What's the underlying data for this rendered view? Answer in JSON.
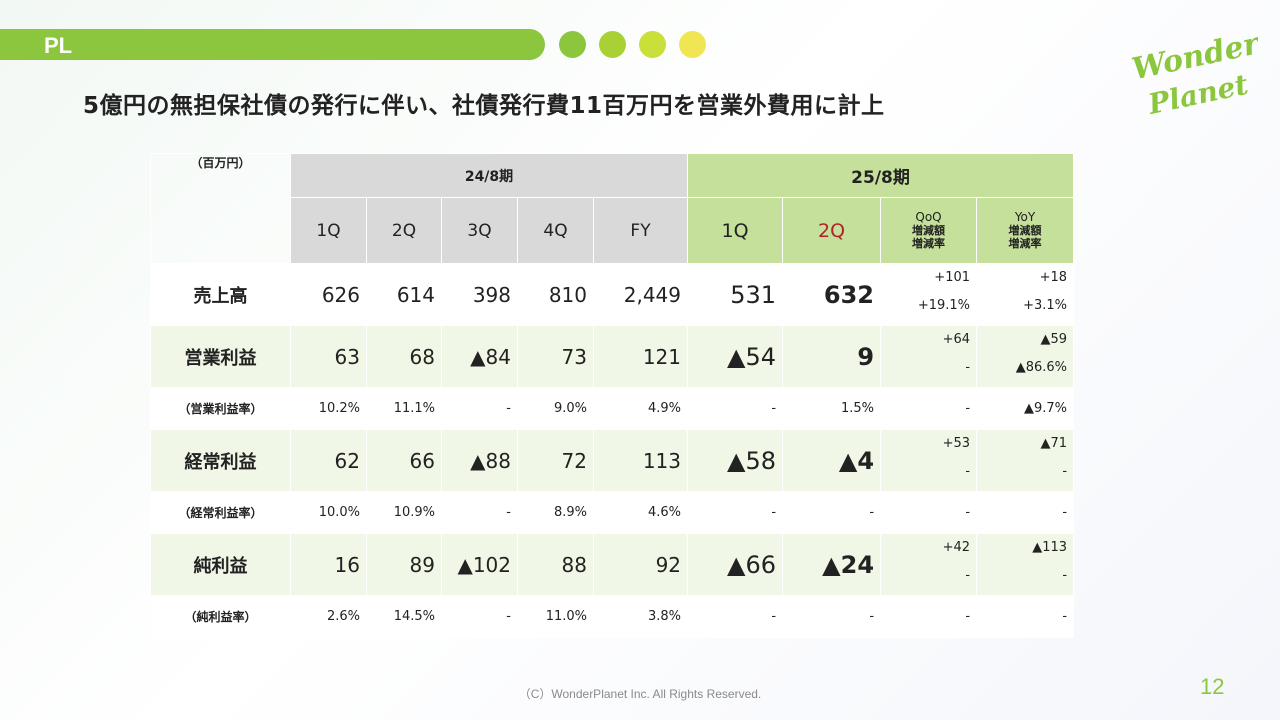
{
  "section": {
    "label": "PL"
  },
  "colors": {
    "accent": "#8cc63e",
    "header_current": "#c5e09b",
    "header_prev": "#d9d9d9",
    "highlight_red": "#b0232a",
    "dots": [
      "#8cc63e",
      "#a9d136",
      "#c9df3a",
      "#f0e552"
    ]
  },
  "logo": {
    "line1": "Wonder",
    "line2": "Planet"
  },
  "headline": "5億円の無担保社債の発行に伴い、社債発行費11百万円を営業外費用に計上",
  "table": {
    "unit": "（百万円）",
    "prev_period": "24/8期",
    "cur_period": "25/8期",
    "prev_cols": [
      "1Q",
      "2Q",
      "3Q",
      "4Q",
      "FY"
    ],
    "cur_cols": [
      "1Q",
      "2Q"
    ],
    "qoq": [
      "QoQ",
      "増減額",
      "増減率"
    ],
    "yoy": [
      "YoY",
      "増減額",
      "増減率"
    ],
    "rows": [
      {
        "label": "売上高",
        "prev": [
          "626",
          "614",
          "398",
          "810",
          "2,449"
        ],
        "cur": [
          "531",
          "632"
        ],
        "qoq": [
          "+101",
          "+19.1%"
        ],
        "yoy": [
          "+18",
          "+3.1%"
        ]
      },
      {
        "label": "営業利益",
        "prev": [
          "63",
          "68",
          "▲84",
          "73",
          "121"
        ],
        "cur": [
          "▲54",
          "9"
        ],
        "qoq": [
          "+64",
          "-"
        ],
        "yoy": [
          "▲59",
          "▲86.6%"
        ]
      },
      {
        "label": "（営業利益率）",
        "prev": [
          "10.2%",
          "11.1%",
          "-",
          "9.0%",
          "4.9%"
        ],
        "cur": [
          "-",
          "1.5%"
        ],
        "qoq": [
          "-"
        ],
        "yoy": [
          "▲9.7%"
        ]
      },
      {
        "label": "経常利益",
        "prev": [
          "62",
          "66",
          "▲88",
          "72",
          "113"
        ],
        "cur": [
          "▲58",
          "▲4"
        ],
        "qoq": [
          "+53",
          "-"
        ],
        "yoy": [
          "▲71",
          "-"
        ]
      },
      {
        "label": "（経常利益率）",
        "prev": [
          "10.0%",
          "10.9%",
          "-",
          "8.9%",
          "4.6%"
        ],
        "cur": [
          "-",
          "-"
        ],
        "qoq": [
          "-"
        ],
        "yoy": [
          "-"
        ]
      },
      {
        "label": "純利益",
        "prev": [
          "16",
          "89",
          "▲102",
          "88",
          "92"
        ],
        "cur": [
          "▲66",
          "▲24"
        ],
        "qoq": [
          "+42",
          "-"
        ],
        "yoy": [
          "▲113",
          "-"
        ]
      },
      {
        "label": "（純利益率）",
        "prev": [
          "2.6%",
          "14.5%",
          "-",
          "11.0%",
          "3.8%"
        ],
        "cur": [
          "-",
          "-"
        ],
        "qoq": [
          "-"
        ],
        "yoy": [
          "-"
        ]
      }
    ]
  },
  "footer": "（C）WonderPlanet Inc.  All Rights Reserved.",
  "page_number": "12"
}
